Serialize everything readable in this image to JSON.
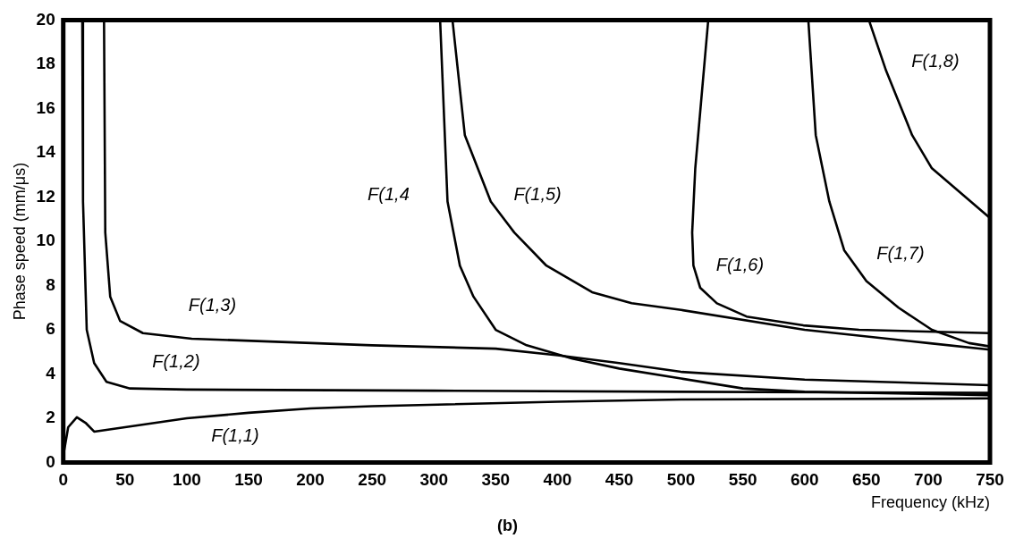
{
  "chart_data": {
    "type": "line",
    "xlabel": "Frequency (kHz)",
    "ylabel": "Phase speed (mm/μs)",
    "xlim": [
      0,
      750
    ],
    "xticks": [
      0,
      50,
      100,
      150,
      200,
      250,
      300,
      350,
      400,
      450,
      500,
      550,
      600,
      650,
      700,
      750
    ],
    "ylim": [
      0,
      20
    ],
    "yticks": [
      0,
      2,
      4,
      6,
      8,
      10,
      12,
      14,
      16,
      18,
      20
    ],
    "grid": false,
    "legend": false,
    "marker": "none",
    "line_style": "solid",
    "series": [
      {
        "name": "F(1,1)",
        "color": "#000000",
        "x": [
          0,
          4,
          11,
          18,
          25,
          50,
          100,
          150,
          200,
          250,
          400,
          500,
          750
        ],
        "values": [
          0.3,
          1.6,
          2.05,
          1.8,
          1.4,
          1.6,
          2.0,
          2.25,
          2.45,
          2.55,
          2.75,
          2.85,
          2.9
        ]
      },
      {
        "name": "F(1,2)",
        "color": "#000000",
        "x": [
          15.4,
          16,
          19,
          25,
          35,
          54,
          100,
          300,
          500,
          750
        ],
        "values": [
          20,
          11.8,
          6,
          4.5,
          3.65,
          3.35,
          3.3,
          3.25,
          3.2,
          3.15
        ]
      },
      {
        "name": "F(1,3)",
        "color": "#000000",
        "x": [
          33,
          34,
          38,
          46,
          64.5,
          104,
          250,
          350,
          400,
          450,
          500,
          600,
          750
        ],
        "values": [
          20,
          10.4,
          7.5,
          6.4,
          5.85,
          5.6,
          5.3,
          5.15,
          4.85,
          4.5,
          4.1,
          3.75,
          3.5
        ]
      },
      {
        "name": "F(1,4",
        "color": "#000000",
        "x": [
          305,
          311,
          321,
          332,
          350,
          375,
          412,
          450,
          500,
          550,
          600,
          750
        ],
        "values": [
          20,
          11.8,
          8.9,
          7.5,
          6,
          5.3,
          4.7,
          4.25,
          3.8,
          3.35,
          3.2,
          3.05
        ]
      },
      {
        "name": "F(1,5)",
        "color": "#000000",
        "x": [
          315,
          325,
          346,
          365,
          391,
          428,
          460,
          500,
          600,
          700,
          750
        ],
        "values": [
          20,
          14.8,
          11.8,
          10.4,
          8.9,
          7.7,
          7.2,
          6.9,
          6.0,
          5.4,
          5.1
        ]
      },
      {
        "name": "F(1,6)",
        "color": "#000000",
        "x": [
          522,
          511.5,
          509,
          510,
          515.5,
          529,
          553,
          599,
          644,
          750
        ],
        "values": [
          20,
          13.3,
          10.4,
          8.9,
          7.9,
          7.2,
          6.6,
          6.2,
          6.0,
          5.85
        ]
      },
      {
        "name": "F(1,7)",
        "color": "#000000",
        "x": [
          603,
          609,
          620,
          632,
          650,
          676,
          703,
          733,
          750
        ],
        "values": [
          20,
          14.8,
          11.8,
          9.6,
          8.2,
          7.0,
          6.0,
          5.4,
          5.25
        ]
      },
      {
        "name": "F(1,8)",
        "color": "#000000",
        "x": [
          652,
          666,
          687,
          703,
          749
        ],
        "values": [
          20,
          17.7,
          14.8,
          13.3,
          11.1
        ]
      }
    ],
    "annotations": [
      "(b)"
    ]
  }
}
